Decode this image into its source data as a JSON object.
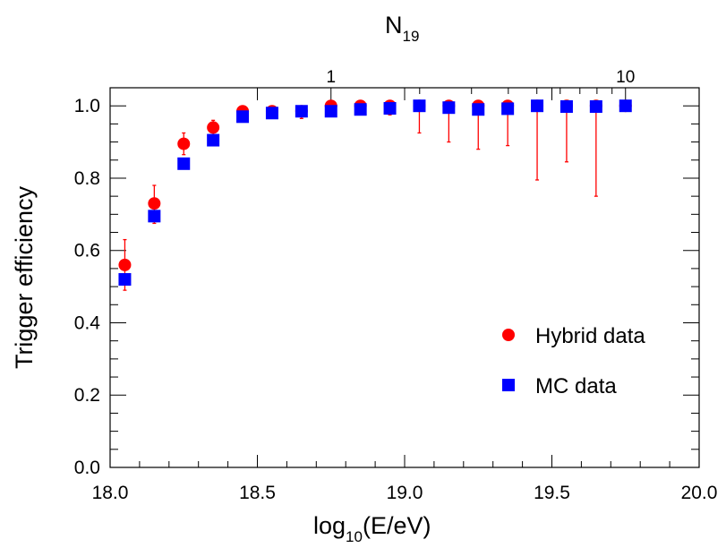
{
  "chart_data": {
    "type": "scatter",
    "title": "",
    "top_axis": {
      "label_main": "N",
      "label_sub": "19",
      "tick_labels": [
        "1",
        "10"
      ]
    },
    "xlabel": {
      "prefix": "log",
      "sub": "10",
      "suffix": "(E/eV)"
    },
    "ylabel": "Trigger efficiency",
    "xlim": [
      18.0,
      20.0
    ],
    "ylim": [
      0.0,
      1.05
    ],
    "x_ticks": [
      18.0,
      18.5,
      19.0,
      19.5,
      20.0
    ],
    "x_tick_labels": [
      "18.0",
      "18.5",
      "19.0",
      "19.5",
      "20.0"
    ],
    "y_ticks": [
      0.0,
      0.2,
      0.4,
      0.6,
      0.8,
      1.0
    ],
    "y_tick_labels": [
      "0.0",
      "0.2",
      "0.4",
      "0.6",
      "0.8",
      "1.0"
    ],
    "legend_position": "lower-right",
    "series": [
      {
        "name": "Hybrid data",
        "marker": "circle",
        "color": "#ff0000",
        "x": [
          18.05,
          18.15,
          18.25,
          18.35,
          18.45,
          18.55,
          18.65,
          18.75,
          18.85,
          18.95,
          19.05,
          19.15,
          19.25,
          19.35,
          19.45,
          19.55,
          19.65,
          19.75
        ],
        "y": [
          0.56,
          0.73,
          0.895,
          0.94,
          0.985,
          0.985,
          0.985,
          1.0,
          1.0,
          1.0,
          1.0,
          1.0,
          1.0,
          1.0,
          1.0,
          1.0,
          1.0,
          1.0
        ],
        "err_low": [
          0.07,
          0.055,
          0.03,
          0.02,
          0.012,
          0.015,
          0.02,
          0.02,
          0.02,
          0.025,
          0.075,
          0.1,
          0.12,
          0.11,
          0.205,
          0.155,
          0.25,
          0.0
        ],
        "err_high": [
          0.07,
          0.05,
          0.03,
          0.02,
          0.012,
          0.01,
          0.01,
          0.0,
          0.0,
          0.0,
          0.0,
          0.0,
          0.0,
          0.0,
          0.0,
          0.0,
          0.0,
          0.0
        ]
      },
      {
        "name": "MC data",
        "marker": "square",
        "color": "#0000ff",
        "x": [
          18.05,
          18.15,
          18.25,
          18.35,
          18.45,
          18.55,
          18.65,
          18.75,
          18.85,
          18.95,
          19.05,
          19.15,
          19.25,
          19.35,
          19.45,
          19.55,
          19.65,
          19.75
        ],
        "y": [
          0.52,
          0.695,
          0.84,
          0.905,
          0.97,
          0.98,
          0.985,
          0.985,
          0.99,
          0.993,
          1.0,
          0.995,
          0.99,
          0.992,
          1.0,
          0.998,
          0.998,
          1.0
        ]
      }
    ]
  }
}
